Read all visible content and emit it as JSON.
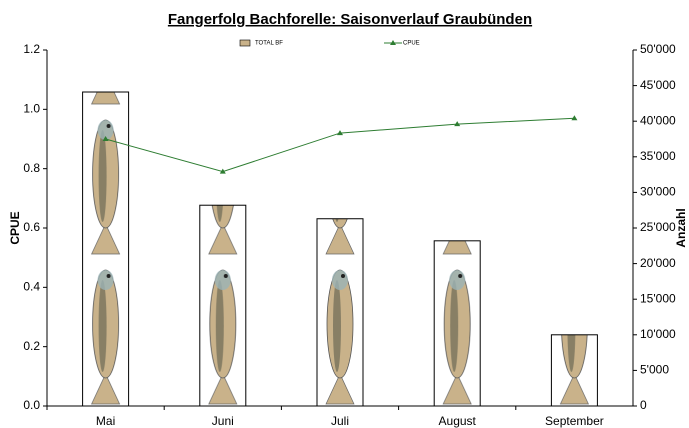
{
  "chart_data": {
    "type": "bar",
    "title": "Fangerfolg Bachforelle: Saisonverlauf Graubünden",
    "y_label": "CPUE",
    "y2_label": "Anzahl",
    "categories": [
      "Mai",
      "Juni",
      "Juli",
      "August",
      "September"
    ],
    "series": [
      {
        "name": "TOTAL BF",
        "type": "bar",
        "axis": "y2",
        "color": "#c9b28a",
        "values": [
          44100,
          28200,
          26300,
          23200,
          10000
        ]
      },
      {
        "name": "CPUE",
        "type": "line",
        "color": "#2e7d32",
        "values": [
          0.9,
          0.79,
          0.92,
          0.95,
          0.97
        ]
      }
    ],
    "ylim": [
      0,
      1.2
    ],
    "yticks": [
      {
        "value": 0,
        "label": "0.0"
      },
      {
        "value": 0.2,
        "label": "0.2"
      },
      {
        "value": 0.4,
        "label": "0.4"
      },
      {
        "value": 0.6,
        "label": "0.6"
      },
      {
        "value": 0.8,
        "label": "0.8"
      },
      {
        "value": 1,
        "label": "1.0"
      },
      {
        "value": 1.2,
        "label": "1.2"
      }
    ],
    "y2lim": [
      0,
      50000
    ],
    "y2ticks": [
      0,
      {
        "value": 5000,
        "label": "5'000"
      },
      {
        "value": 10000,
        "label": "10'000"
      },
      {
        "value": 15000,
        "label": "15'000"
      },
      {
        "value": 20000,
        "label": "20'000"
      },
      {
        "value": 25000,
        "label": "25'000"
      },
      {
        "value": 30000,
        "label": "30'000"
      },
      {
        "value": 35000,
        "label": "35'000"
      },
      {
        "value": 40000,
        "label": "40'000"
      },
      {
        "value": 45000,
        "label": "45'000"
      },
      {
        "value": 50000,
        "label": "50'000"
      }
    ],
    "grid": false
  }
}
